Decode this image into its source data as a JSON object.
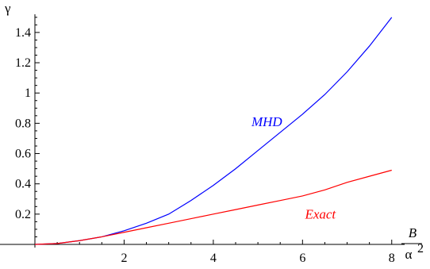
{
  "chart_data": {
    "type": "line",
    "xlabel": {
      "numerator": "B",
      "denominator": "α",
      "exponent": "2"
    },
    "ylabel": "γ",
    "xlim": [
      0,
      8.2
    ],
    "ylim": [
      0,
      1.52
    ],
    "x_ticks": [
      2,
      4,
      6,
      8
    ],
    "x_tick_labels": [
      "2",
      "4",
      "6",
      "8"
    ],
    "y_ticks": [
      0.2,
      0.4,
      0.6,
      0.8,
      1.0,
      1.2,
      1.4
    ],
    "y_tick_labels": [
      "0.2",
      "0.4",
      "0.6",
      "0.8",
      "1",
      "1.2",
      "1.4"
    ],
    "grid": false,
    "series": [
      {
        "name": "MHD",
        "color": "#0000ff",
        "x": [
          0,
          0.5,
          1,
          1.5,
          2,
          2.5,
          3,
          3.5,
          4,
          4.5,
          5,
          5.5,
          6,
          6.5,
          7,
          7.5,
          8
        ],
        "y": [
          0,
          0.006,
          0.025,
          0.05,
          0.09,
          0.14,
          0.2,
          0.29,
          0.39,
          0.5,
          0.62,
          0.74,
          0.86,
          0.99,
          1.14,
          1.31,
          1.5
        ]
      },
      {
        "name": "Exact",
        "color": "#ff0000",
        "x": [
          0,
          0.5,
          1,
          1.5,
          2,
          2.5,
          3,
          3.5,
          4,
          4.5,
          5,
          5.5,
          6,
          6.5,
          7,
          7.5,
          8
        ],
        "y": [
          0,
          0.006,
          0.025,
          0.05,
          0.08,
          0.11,
          0.14,
          0.17,
          0.2,
          0.23,
          0.26,
          0.29,
          0.32,
          0.36,
          0.41,
          0.45,
          0.49
        ]
      }
    ],
    "annotations": [
      {
        "text": "MHD",
        "x": 5.2,
        "y": 0.78,
        "series": 0
      },
      {
        "text": "Exact",
        "x": 6.4,
        "y": 0.17,
        "series": 1
      }
    ]
  }
}
